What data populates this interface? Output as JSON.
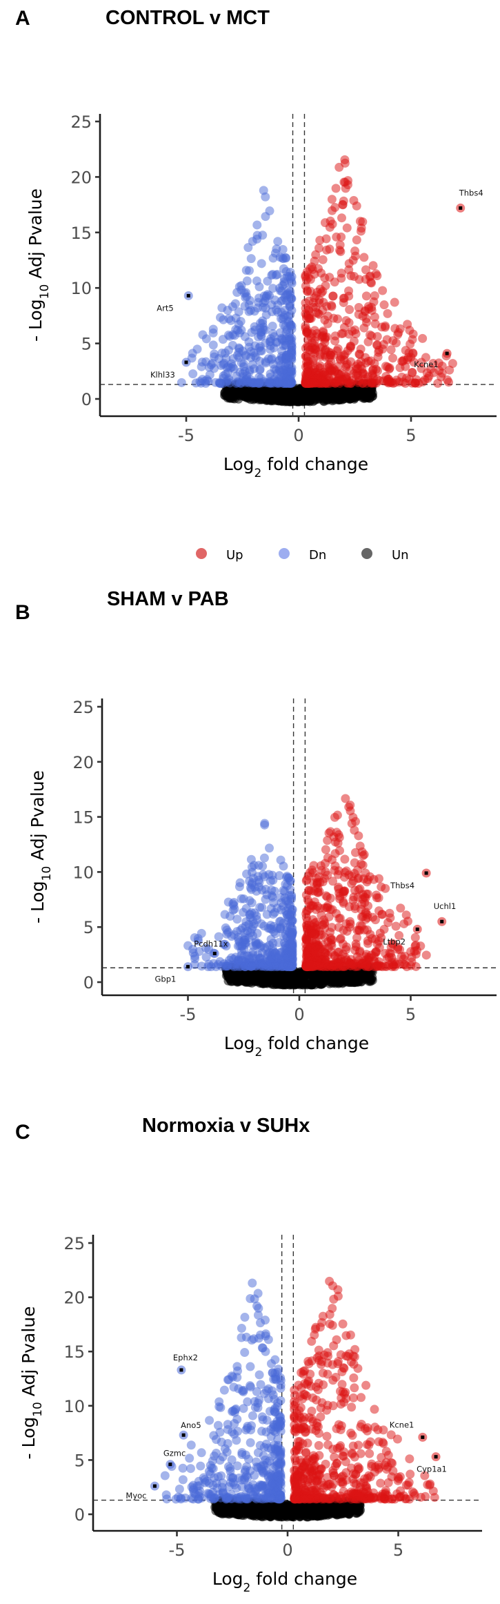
{
  "chart_data": [
    {
      "type": "scatter",
      "panel_letter": "A",
      "title": "CONTROL v MCT",
      "xlabel": "Log2 fold change",
      "ylabel": "- Log10 Adj Pvalue",
      "xlim": [
        -8.8,
        8.9
      ],
      "ylim": [
        -0.6,
        25.5
      ],
      "xticks": [
        -5,
        0,
        5
      ],
      "yticks": [
        0,
        5,
        10,
        15,
        20,
        25
      ],
      "thresholds": {
        "log2fc": [
          -0.26,
          0.26
        ],
        "neg_log10_padj": 1.3
      },
      "grid": false,
      "labeled_genes": [
        {
          "gene": "Thbs4",
          "x": 7.2,
          "y": 17.2
        },
        {
          "gene": "Art5",
          "x": -4.9,
          "y": 9.3
        },
        {
          "gene": "Klhl33",
          "x": -5.0,
          "y": 3.3
        },
        {
          "gene": "Kcne1",
          "x": 6.6,
          "y": 4.1
        }
      ]
    },
    {
      "type": "scatter",
      "panel_letter": "B",
      "title": "SHAM v PAB",
      "xlabel": "Log2 fold change",
      "ylabel": "- Log10 Adj Pvalue",
      "xlim": [
        -8.8,
        8.9
      ],
      "ylim": [
        -0.6,
        25.5
      ],
      "xticks": [
        -5,
        0,
        5
      ],
      "yticks": [
        0,
        5,
        10,
        15,
        20,
        25
      ],
      "thresholds": {
        "log2fc": [
          -0.26,
          0.26
        ],
        "neg_log10_padj": 1.3
      },
      "grid": false,
      "labeled_genes": [
        {
          "gene": "Thbs4",
          "x": 5.7,
          "y": 9.9
        },
        {
          "gene": "Uchl1",
          "x": 6.4,
          "y": 5.5
        },
        {
          "gene": "Ltbp2",
          "x": 5.3,
          "y": 4.8
        },
        {
          "gene": "Pcdh11x",
          "x": -3.8,
          "y": 2.6
        },
        {
          "gene": "Gbp1",
          "x": -5.0,
          "y": 1.4
        }
      ]
    },
    {
      "type": "scatter",
      "panel_letter": "C",
      "title": "Normoxia v SUHx",
      "xlabel": "Log2 fold change",
      "ylabel": "- Log10 Adj Pvalue",
      "xlim": [
        -8.8,
        8.9
      ],
      "ylim": [
        -0.6,
        25.5
      ],
      "xticks": [
        -5,
        0,
        5
      ],
      "yticks": [
        0,
        5,
        10,
        15,
        20,
        25
      ],
      "thresholds": {
        "log2fc": [
          -0.26,
          0.26
        ],
        "neg_log10_padj": 1.3
      },
      "grid": false,
      "labeled_genes": [
        {
          "gene": "Ephx2",
          "x": -4.8,
          "y": 13.3
        },
        {
          "gene": "Ano5",
          "x": -4.7,
          "y": 7.3
        },
        {
          "gene": "Gzmc",
          "x": -5.3,
          "y": 4.6
        },
        {
          "gene": "Myoc",
          "x": -6.0,
          "y": 2.6
        },
        {
          "gene": "Kcne1",
          "x": 6.1,
          "y": 7.1
        },
        {
          "gene": "Cyp1a1",
          "x": 6.7,
          "y": 5.3
        }
      ]
    }
  ],
  "background_points_note": "The dense Up/Dn/Un point clouds are drawn by the script from a seeded generator to approximate the screenshot's appearance. Only the labelled genes, axes and thresholds were read from the image.",
  "legend": {
    "placement": "between panels A and B, centered",
    "items": [
      {
        "label": "Up",
        "color": "#e06666"
      },
      {
        "label": "Dn",
        "color": "#8fa3ee"
      },
      {
        "label": "Un",
        "color": "#666666"
      }
    ]
  },
  "colors": {
    "up": "#dc1414",
    "down": "#4a6ad8",
    "unchanged": "#000000",
    "labeled": "#000000"
  }
}
